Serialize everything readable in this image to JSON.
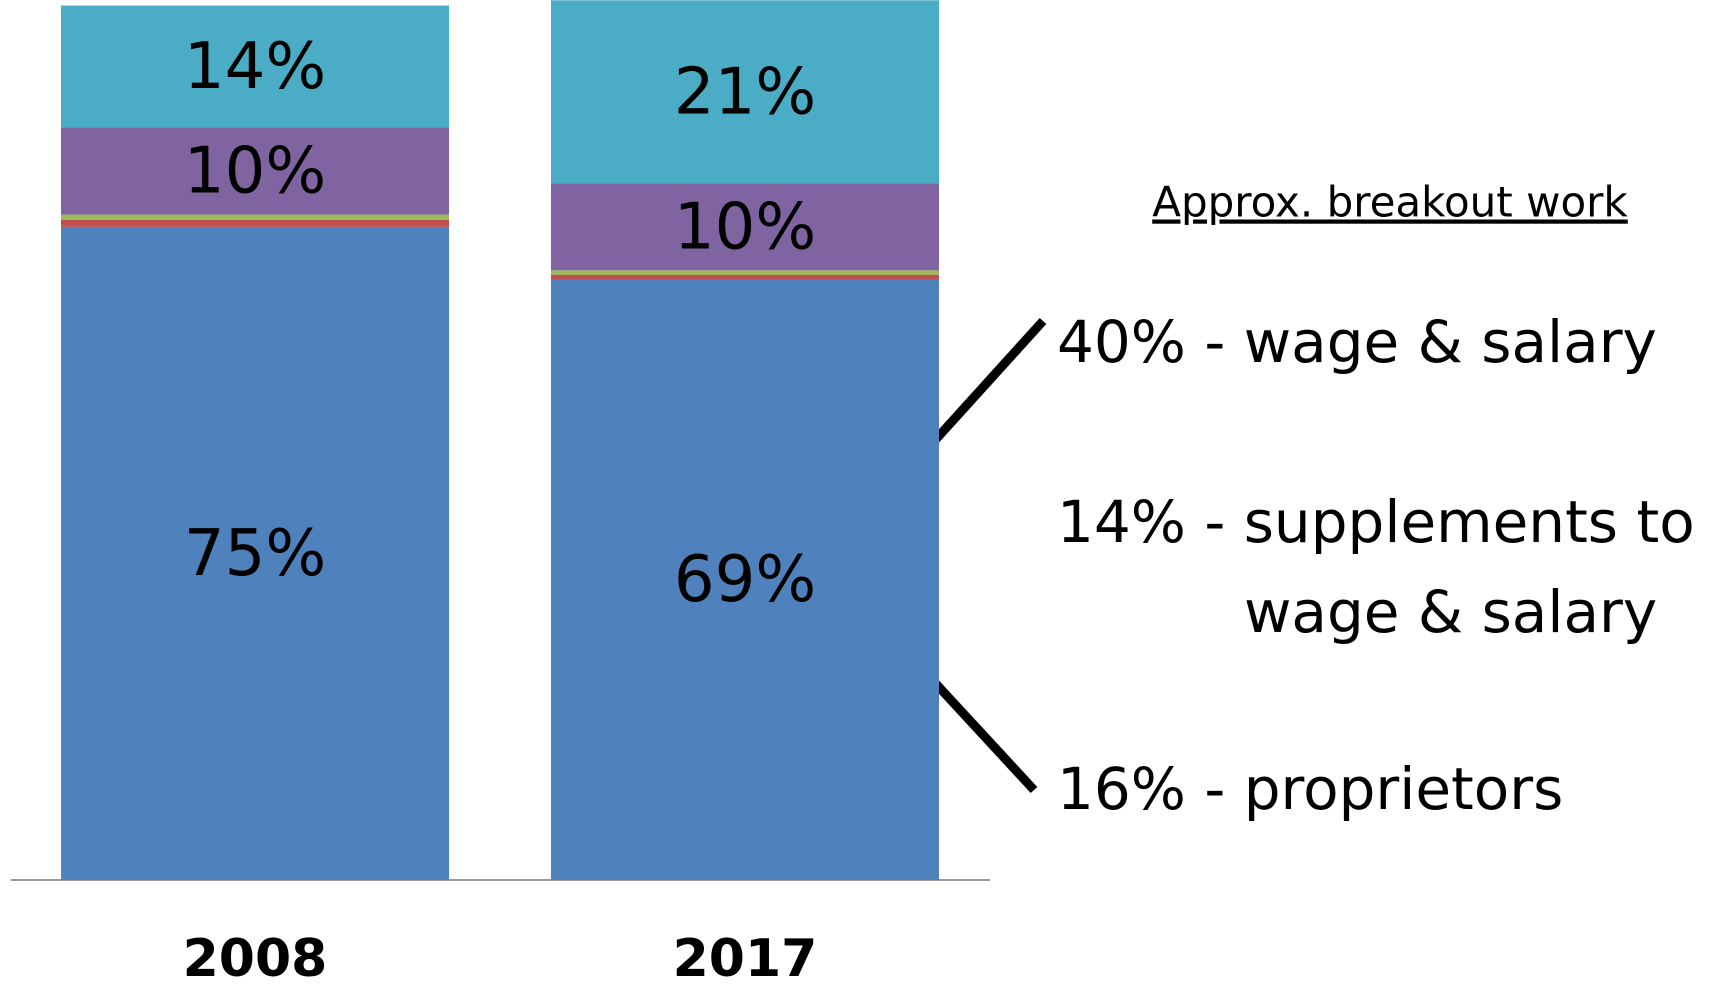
{
  "chart_data": {
    "type": "stacked_bar",
    "categories": [
      "2008",
      "2017"
    ],
    "ylim": [
      0,
      100
    ],
    "series": [
      {
        "color": "#4f81bd",
        "values": [
          75,
          69
        ],
        "value_labels": [
          "75%",
          "69%"
        ]
      },
      {
        "color": "#c0504d",
        "values": [
          0.8,
          0.5
        ]
      },
      {
        "color": "#9bbb59",
        "values": [
          0.6,
          0.5
        ]
      },
      {
        "color": "#8064a2",
        "values": [
          10,
          10
        ],
        "value_labels": [
          "10%",
          "10%"
        ]
      },
      {
        "color": "#4bacc6",
        "values": [
          14,
          21
        ],
        "value_labels": [
          "14%",
          "21%"
        ]
      }
    ],
    "breakout": {
      "title": "Approx. breakout work",
      "items": [
        [
          "40% - wage & salary"
        ],
        [
          "14% - supplements to",
          "wage & salary"
        ],
        [
          "16% - proprietors"
        ]
      ]
    }
  }
}
